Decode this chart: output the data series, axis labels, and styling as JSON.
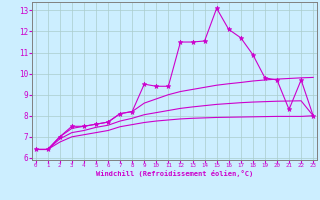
{
  "xlabel": "Windchill (Refroidissement éolien,°C)",
  "bg_color": "#cceeff",
  "grid_color": "#aacccc",
  "line_color": "#cc00cc",
  "x_ticks": [
    0,
    1,
    2,
    3,
    4,
    5,
    6,
    7,
    8,
    9,
    10,
    11,
    12,
    13,
    14,
    15,
    16,
    17,
    18,
    19,
    20,
    21,
    22,
    23
  ],
  "y_ticks": [
    6,
    7,
    8,
    9,
    10,
    11,
    12,
    13
  ],
  "ylim": [
    5.9,
    13.4
  ],
  "xlim": [
    -0.3,
    23.3
  ],
  "series1_x": [
    0,
    1,
    2,
    3,
    4,
    5,
    6,
    7,
    8,
    9,
    10,
    11,
    12,
    13,
    14,
    15,
    16,
    17,
    18,
    19,
    20,
    21,
    22,
    23
  ],
  "series1_y": [
    6.4,
    6.4,
    7.0,
    7.5,
    7.5,
    7.6,
    7.7,
    8.1,
    8.2,
    9.5,
    9.4,
    9.4,
    11.5,
    11.5,
    11.55,
    13.1,
    12.1,
    11.7,
    10.9,
    9.8,
    9.7,
    8.3,
    9.7,
    8.0
  ],
  "series2_x": [
    0,
    1,
    2,
    3,
    4,
    5,
    6,
    7,
    8,
    9,
    10,
    11,
    12,
    13,
    14,
    15,
    16,
    17,
    18,
    19,
    20,
    21,
    22,
    23
  ],
  "series2_y": [
    6.4,
    6.4,
    7.0,
    7.4,
    7.5,
    7.6,
    7.7,
    8.1,
    8.2,
    8.6,
    8.8,
    9.0,
    9.15,
    9.25,
    9.35,
    9.45,
    9.52,
    9.58,
    9.65,
    9.7,
    9.74,
    9.77,
    9.8,
    9.82
  ],
  "series3_x": [
    0,
    1,
    2,
    3,
    4,
    5,
    6,
    7,
    8,
    9,
    10,
    11,
    12,
    13,
    14,
    15,
    16,
    17,
    18,
    19,
    20,
    21,
    22,
    23
  ],
  "series3_y": [
    6.4,
    6.4,
    6.9,
    7.2,
    7.3,
    7.45,
    7.55,
    7.75,
    7.88,
    8.05,
    8.15,
    8.25,
    8.35,
    8.42,
    8.48,
    8.54,
    8.58,
    8.62,
    8.65,
    8.67,
    8.69,
    8.7,
    8.71,
    8.0
  ],
  "series4_x": [
    0,
    1,
    2,
    3,
    4,
    5,
    6,
    7,
    8,
    9,
    10,
    11,
    12,
    13,
    14,
    15,
    16,
    17,
    18,
    19,
    20,
    21,
    22,
    23
  ],
  "series4_y": [
    6.4,
    6.4,
    6.75,
    7.0,
    7.1,
    7.2,
    7.3,
    7.48,
    7.58,
    7.68,
    7.75,
    7.8,
    7.85,
    7.88,
    7.9,
    7.92,
    7.93,
    7.94,
    7.95,
    7.96,
    7.97,
    7.97,
    7.97,
    8.0
  ]
}
